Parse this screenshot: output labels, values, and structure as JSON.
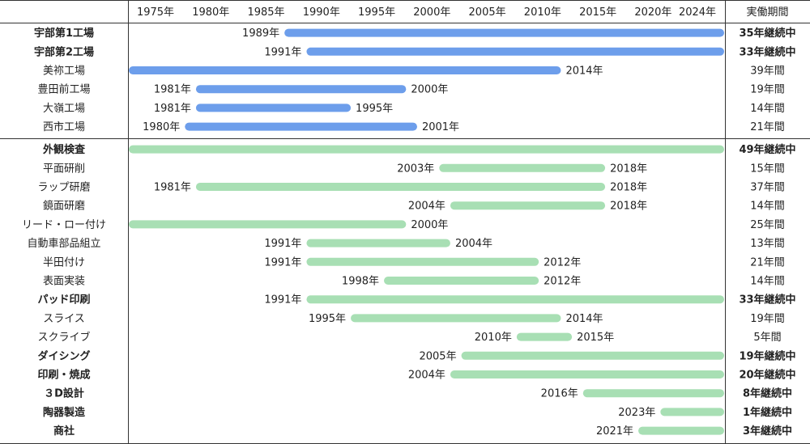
{
  "chart_data": {
    "type": "gantt",
    "x_axis_ticks": [
      "1975年",
      "1980年",
      "1985年",
      "1990年",
      "1995年",
      "2000年",
      "2005年",
      "2010年",
      "2015年",
      "2020年",
      "2024年"
    ],
    "tick_years": [
      1975,
      1980,
      1985,
      1990,
      1995,
      2000,
      2005,
      2010,
      2015,
      2020,
      2024
    ],
    "duration_header": "実働期間",
    "colors": {
      "factory": "#6d9eeb",
      "process": "#a8dfb4",
      "text": "#222222",
      "line": "#333333"
    },
    "groups": [
      {
        "name": "factories",
        "color": "factory",
        "rows": [
          {
            "label": "宇部第1工場",
            "bold": true,
            "start": 1989,
            "end": 2025.5,
            "start_label": "1989年",
            "end_label": "",
            "duration": "35年継続中"
          },
          {
            "label": "宇部第2工場",
            "bold": true,
            "start": 1991,
            "end": 2025.5,
            "start_label": "1991年",
            "end_label": "",
            "duration": "33年継続中"
          },
          {
            "label": "美祢工場",
            "bold": false,
            "start": 1975,
            "end": 2014,
            "start_label": "",
            "end_label": "2014年",
            "duration": "39年間"
          },
          {
            "label": "豊田前工場",
            "bold": false,
            "start": 1981,
            "end": 2000,
            "start_label": "1981年",
            "end_label": "2000年",
            "duration": "19年間"
          },
          {
            "label": "大嶺工場",
            "bold": false,
            "start": 1981,
            "end": 1995,
            "start_label": "1981年",
            "end_label": "1995年",
            "duration": "14年間"
          },
          {
            "label": "西市工場",
            "bold": false,
            "start": 1980,
            "end": 2001,
            "start_label": "1980年",
            "end_label": "2001年",
            "duration": "21年間"
          }
        ]
      },
      {
        "name": "processes",
        "color": "process",
        "rows": [
          {
            "label": "外観検査",
            "bold": true,
            "start": 1975,
            "end": 2025.5,
            "start_label": "",
            "end_label": "",
            "duration": "49年継続中"
          },
          {
            "label": "平面研削",
            "bold": false,
            "start": 2003,
            "end": 2018,
            "start_label": "2003年",
            "end_label": "2018年",
            "duration": "15年間"
          },
          {
            "label": "ラップ研磨",
            "bold": false,
            "start": 1981,
            "end": 2018,
            "start_label": "1981年",
            "end_label": "2018年",
            "duration": "37年間"
          },
          {
            "label": "鏡面研磨",
            "bold": false,
            "start": 2004,
            "end": 2018,
            "start_label": "2004年",
            "end_label": "2018年",
            "duration": "14年間"
          },
          {
            "label": "リード・ロー付け",
            "bold": false,
            "start": 1975,
            "end": 2000,
            "start_label": "",
            "end_label": "2000年",
            "duration": "25年間"
          },
          {
            "label": "自動車部品組立",
            "bold": false,
            "start": 1991,
            "end": 2004,
            "start_label": "1991年",
            "end_label": "2004年",
            "duration": "13年間"
          },
          {
            "label": "半田付け",
            "bold": false,
            "start": 1991,
            "end": 2012,
            "start_label": "1991年",
            "end_label": "2012年",
            "duration": "21年間"
          },
          {
            "label": "表面実装",
            "bold": false,
            "start": 1998,
            "end": 2012,
            "start_label": "1998年",
            "end_label": "2012年",
            "duration": "14年間"
          },
          {
            "label": "パッド印刷",
            "bold": true,
            "start": 1991,
            "end": 2025.5,
            "start_label": "1991年",
            "end_label": "",
            "duration": "33年継続中"
          },
          {
            "label": "スライス",
            "bold": false,
            "start": 1995,
            "end": 2014,
            "start_label": "1995年",
            "end_label": "2014年",
            "duration": "19年間"
          },
          {
            "label": "スクライブ",
            "bold": false,
            "start": 2010,
            "end": 2015,
            "start_label": "2010年",
            "end_label": "2015年",
            "duration": "5年間"
          },
          {
            "label": "ダイシング",
            "bold": true,
            "start": 2005,
            "end": 2025.5,
            "start_label": "2005年",
            "end_label": "",
            "duration": "19年継続中"
          },
          {
            "label": "印刷・焼成",
            "bold": true,
            "start": 2004,
            "end": 2025.5,
            "start_label": "2004年",
            "end_label": "",
            "duration": "20年継続中"
          },
          {
            "label": "３D設計",
            "bold": true,
            "start": 2016,
            "end": 2025.5,
            "start_label": "2016年",
            "end_label": "",
            "duration": "8年継続中"
          },
          {
            "label": "陶器製造",
            "bold": true,
            "start": 2023,
            "end": 2025.5,
            "start_label": "2023年",
            "end_label": "",
            "duration": "1年継続中"
          },
          {
            "label": "商社",
            "bold": true,
            "start": 2021,
            "end": 2025.5,
            "start_label": "2021年",
            "end_label": "",
            "duration": "3年継続中"
          }
        ]
      }
    ]
  }
}
